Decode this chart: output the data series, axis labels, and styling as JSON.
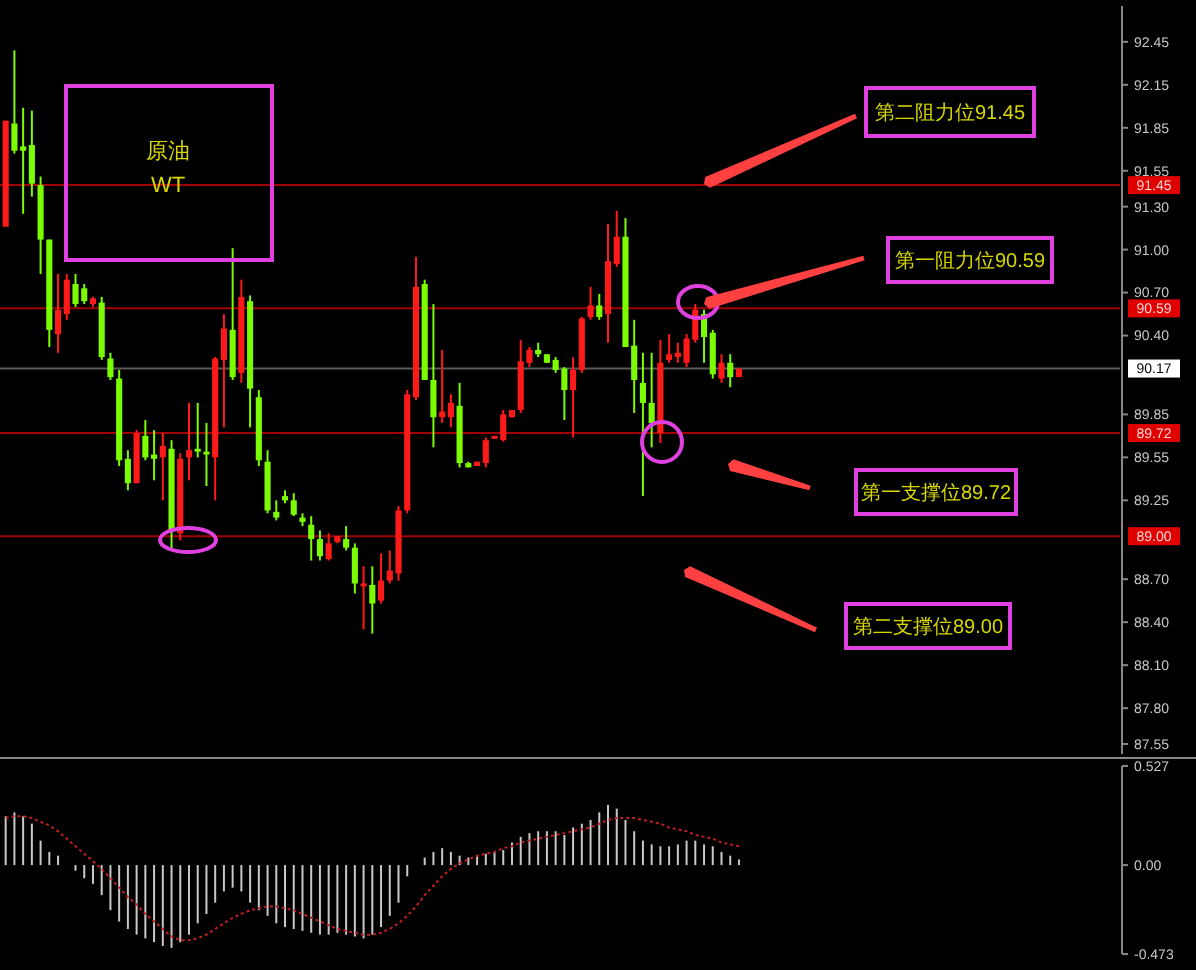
{
  "chart_data": [
    {
      "type": "candlestick",
      "title": "原油",
      "subtitle": "WT",
      "categories": [
        null,
        null,
        null,
        null,
        null,
        null,
        null,
        null,
        null,
        null,
        null,
        null,
        null,
        null,
        null,
        null,
        null,
        null,
        null,
        null,
        null,
        null,
        null,
        null,
        null,
        null,
        null,
        null,
        null,
        null,
        null,
        null,
        null,
        null,
        null,
        null,
        null,
        null,
        null,
        null,
        null,
        null,
        null,
        null,
        null,
        null,
        null,
        null,
        null,
        null,
        null,
        null,
        null,
        null,
        null,
        null,
        null,
        null,
        null,
        null,
        null,
        null,
        null,
        null,
        null,
        null,
        null,
        null,
        null,
        null,
        null,
        null,
        null,
        null,
        null,
        null,
        null,
        null,
        null,
        null,
        null,
        null,
        null,
        null,
        null,
        null,
        null,
        null,
        null,
        null,
        null,
        null,
        null,
        null,
        null,
        null,
        null,
        null,
        null,
        null,
        null,
        null,
        null,
        null,
        null,
        null,
        null,
        null,
        null,
        null,
        null,
        null,
        null,
        null,
        null,
        null,
        null,
        null,
        null,
        null,
        null,
        null,
        null,
        null,
        null,
        null,
        null,
        null
      ],
      "ohlc": [
        [
          91.16,
          91.9,
          91.16,
          91.9
        ],
        [
          91.88,
          92.39,
          91.67,
          91.69
        ],
        [
          91.72,
          91.99,
          91.25,
          91.69
        ],
        [
          91.73,
          91.97,
          91.37,
          91.46
        ],
        [
          91.45,
          91.51,
          90.83,
          91.07
        ],
        [
          91.07,
          91.07,
          90.32,
          90.44
        ],
        [
          90.41,
          90.83,
          90.28,
          90.58
        ],
        [
          90.55,
          90.83,
          90.51,
          90.79
        ],
        [
          90.76,
          90.83,
          90.6,
          90.62
        ],
        [
          90.73,
          90.76,
          90.62,
          90.64
        ],
        [
          90.62,
          90.67,
          90.6,
          90.66
        ],
        [
          90.63,
          90.67,
          90.23,
          90.25
        ],
        [
          90.24,
          90.28,
          90.09,
          90.11
        ],
        [
          90.1,
          90.16,
          89.49,
          89.53
        ],
        [
          89.54,
          89.6,
          89.32,
          89.37
        ],
        [
          89.37,
          89.74,
          89.37,
          89.72
        ],
        [
          89.7,
          89.81,
          89.53,
          89.55
        ],
        [
          89.57,
          89.74,
          89.39,
          89.54
        ],
        [
          89.55,
          89.72,
          89.25,
          89.63
        ],
        [
          89.61,
          89.67,
          88.9,
          89.04
        ],
        [
          89.02,
          89.58,
          88.97,
          89.54
        ],
        [
          89.55,
          89.93,
          89.39,
          89.6
        ],
        [
          89.61,
          89.93,
          89.55,
          89.59
        ],
        [
          89.59,
          89.79,
          89.35,
          89.57
        ],
        [
          89.55,
          90.25,
          89.25,
          90.24
        ],
        [
          90.23,
          90.55,
          89.76,
          90.45
        ],
        [
          90.44,
          91.01,
          90.09,
          90.11
        ],
        [
          90.14,
          90.79,
          90.07,
          90.67
        ],
        [
          90.64,
          90.68,
          89.76,
          90.03
        ],
        [
          89.97,
          90.02,
          89.49,
          89.53
        ],
        [
          89.52,
          89.6,
          89.16,
          89.18
        ],
        [
          89.17,
          89.25,
          89.11,
          89.13
        ],
        [
          89.28,
          89.32,
          89.23,
          89.25
        ],
        [
          89.25,
          89.3,
          89.14,
          89.15
        ],
        [
          89.13,
          89.16,
          89.07,
          89.1
        ],
        [
          89.08,
          89.14,
          88.83,
          88.98
        ],
        [
          88.98,
          89.04,
          88.83,
          88.86
        ],
        [
          88.84,
          89.02,
          88.83,
          88.95
        ],
        [
          88.96,
          89.0,
          88.95,
          89.0
        ],
        [
          88.98,
          89.07,
          88.9,
          88.92
        ],
        [
          88.92,
          88.95,
          88.6,
          88.67
        ],
        [
          88.65,
          88.79,
          88.35,
          88.67
        ],
        [
          88.66,
          88.79,
          88.32,
          88.53
        ],
        [
          88.55,
          88.88,
          88.53,
          88.69
        ],
        [
          88.69,
          88.9,
          88.67,
          88.76
        ],
        [
          88.74,
          89.21,
          88.69,
          89.18
        ],
        [
          89.18,
          90.02,
          89.16,
          89.99
        ],
        [
          89.97,
          90.95,
          89.95,
          90.74
        ],
        [
          90.76,
          90.79,
          90.09,
          90.09
        ],
        [
          90.09,
          90.62,
          89.62,
          89.83
        ],
        [
          89.83,
          90.3,
          89.79,
          89.87
        ],
        [
          89.83,
          89.99,
          89.76,
          89.93
        ],
        [
          89.91,
          90.07,
          89.48,
          89.51
        ],
        [
          89.51,
          89.52,
          89.48,
          89.48
        ],
        [
          89.49,
          89.52,
          89.49,
          89.52
        ],
        [
          89.51,
          89.69,
          89.48,
          89.67
        ],
        [
          89.68,
          89.7,
          89.68,
          89.7
        ],
        [
          89.67,
          89.88,
          89.66,
          89.85
        ],
        [
          89.83,
          89.88,
          89.83,
          89.88
        ],
        [
          89.88,
          90.37,
          89.86,
          90.22
        ],
        [
          90.21,
          90.32,
          90.18,
          90.3
        ],
        [
          90.3,
          90.35,
          90.25,
          90.27
        ],
        [
          90.27,
          90.27,
          90.21,
          90.21
        ],
        [
          90.23,
          90.25,
          90.14,
          90.16
        ],
        [
          90.17,
          90.18,
          89.81,
          90.02
        ],
        [
          90.02,
          90.25,
          89.69,
          90.16
        ],
        [
          90.16,
          90.53,
          90.14,
          90.52
        ],
        [
          90.53,
          90.74,
          90.51,
          90.61
        ],
        [
          90.61,
          90.69,
          90.51,
          90.53
        ],
        [
          90.55,
          91.18,
          90.35,
          90.92
        ],
        [
          90.9,
          91.27,
          90.88,
          91.09
        ],
        [
          91.09,
          91.22,
          90.32,
          90.32
        ],
        [
          90.33,
          90.51,
          89.86,
          90.09
        ],
        [
          90.07,
          90.28,
          89.28,
          89.93
        ],
        [
          89.93,
          90.28,
          89.62,
          89.79
        ],
        [
          89.72,
          90.37,
          89.65,
          90.21
        ],
        [
          90.23,
          90.41,
          90.21,
          90.27
        ],
        [
          90.25,
          90.35,
          90.21,
          90.28
        ],
        [
          90.21,
          90.41,
          90.18,
          90.38
        ],
        [
          90.37,
          90.62,
          90.35,
          90.58
        ],
        [
          90.55,
          90.58,
          90.21,
          90.39
        ],
        [
          90.42,
          90.44,
          90.1,
          90.13
        ],
        [
          90.1,
          90.27,
          90.07,
          90.21
        ],
        [
          90.21,
          90.27,
          90.04,
          90.11
        ],
        [
          90.11,
          90.17,
          90.11,
          90.17
        ],
        null,
        null,
        null,
        null,
        null,
        null,
        null,
        null,
        null,
        null,
        null,
        null,
        null,
        null,
        null,
        null,
        null,
        null,
        null,
        null,
        null,
        null,
        null,
        null,
        null,
        null,
        null,
        null,
        null,
        null,
        null,
        null,
        null,
        null,
        null,
        null,
        null,
        null,
        null,
        null,
        null,
        null,
        null
      ],
      "colors": [
        "#ff1a1a",
        "#7cfc00",
        "#7cfc00",
        "#7cfc00",
        "#7cfc00",
        "#7cfc00",
        "#ff1a1a",
        "#ff1a1a",
        "#7cfc00",
        "#7cfc00",
        "#ff1a1a",
        "#7cfc00",
        "#7cfc00",
        "#7cfc00",
        "#7cfc00",
        "#ff1a1a",
        "#7cfc00",
        "#7cfc00",
        "#ff1a1a",
        "#7cfc00",
        "#ff1a1a",
        "#ff1a1a",
        "#7cfc00",
        "#7cfc00",
        "#ff1a1a",
        "#ff1a1a",
        "#7cfc00",
        "#ff1a1a",
        "#7cfc00",
        "#7cfc00",
        "#7cfc00",
        "#7cfc00",
        "#7cfc00",
        "#7cfc00",
        "#7cfc00",
        "#7cfc00",
        "#7cfc00",
        "#ff1a1a",
        "#ff1a1a",
        "#7cfc00",
        "#7cfc00",
        "#ff1a1a",
        "#7cfc00",
        "#ff1a1a",
        "#ff1a1a",
        "#ff1a1a",
        "#ff1a1a",
        "#ff1a1a",
        "#7cfc00",
        "#7cfc00",
        "#ff1a1a",
        "#ff1a1a",
        "#7cfc00",
        "#7cfc00",
        "#ff1a1a",
        "#ff1a1a",
        "#ff1a1a",
        "#ff1a1a",
        "#ff1a1a",
        "#ff1a1a",
        "#ff1a1a",
        "#7cfc00",
        "#7cfc00",
        "#7cfc00",
        "#7cfc00",
        "#ff1a1a",
        "#ff1a1a",
        "#ff1a1a",
        "#7cfc00",
        "#ff1a1a",
        "#ff1a1a",
        "#7cfc00",
        "#7cfc00",
        "#7cfc00",
        "#7cfc00",
        "#ff1a1a",
        "#ff1a1a",
        "#ff1a1a",
        "#ff1a1a",
        "#ff1a1a",
        "#7cfc00",
        "#7cfc00",
        "#ff1a1a",
        "#7cfc00",
        "#ff1a1a",
        null,
        null,
        null,
        null,
        null,
        null,
        null,
        null,
        null,
        null,
        null,
        null,
        null,
        null,
        null,
        null,
        null,
        null,
        null,
        null,
        null,
        null,
        null,
        null,
        null,
        null,
        null,
        null,
        null,
        null,
        null,
        null,
        null,
        null,
        null,
        null,
        null,
        null,
        null,
        null,
        null,
        null,
        null
      ],
      "ylim": [
        87.48,
        92.7
      ],
      "yticks": [
        92.45,
        92.15,
        91.85,
        91.55,
        {
          "value": 91.3,
          "label": "91.30"
        },
        {
          "value": 91,
          "label": "91.00"
        },
        {
          "value": 90.7,
          "label": "90.70"
        },
        {
          "value": 90.4,
          "label": "90.40"
        },
        89.85,
        89.55,
        89.25,
        {
          "value": 88.7,
          "label": "88.70"
        },
        {
          "value": 88.4,
          "label": "88.40"
        },
        {
          "value": 88.1,
          "label": "88.10"
        },
        {
          "value": 87.8,
          "label": "87.80"
        },
        87.55
      ],
      "ref_lines": [
        {
          "axis": "y",
          "value": 91.45,
          "label": "91.45",
          "color": "#a00000"
        },
        {
          "axis": "y",
          "value": 90.59,
          "label": "90.59",
          "color": "#a00000"
        },
        {
          "axis": "y",
          "value": 90.17,
          "label": "90.17",
          "color": "#5a5a5a"
        },
        {
          "axis": "y",
          "value": 89.72,
          "label": "89.72",
          "color": "#a00000"
        },
        {
          "axis": "y",
          "value": 89.0,
          "label": "89.00",
          "color": "#a00000"
        }
      ],
      "annotations": [
        "第二阻力位91.45",
        "第一阻力位90.59",
        "第一支撑位89.72",
        "第二支撑位89.00"
      ]
    },
    {
      "type": "bar",
      "categories": [
        null,
        null,
        null,
        null,
        null,
        null,
        null,
        null,
        null,
        null,
        null,
        null,
        null,
        null,
        null,
        null,
        null,
        null,
        null,
        null,
        null,
        null,
        null,
        null,
        null,
        null,
        null,
        null,
        null,
        null,
        null,
        null,
        null,
        null,
        null,
        null,
        null,
        null,
        null,
        null,
        null,
        null,
        null,
        null,
        null,
        null,
        null,
        null,
        null,
        null,
        null,
        null,
        null,
        null,
        null,
        null,
        null,
        null,
        null,
        null,
        null,
        null,
        null,
        null,
        null,
        null,
        null,
        null,
        null,
        null,
        null,
        null,
        null,
        null,
        null,
        null,
        null,
        null,
        null,
        null,
        null,
        null,
        null,
        null,
        null,
        null,
        null,
        null,
        null,
        null,
        null,
        null,
        null,
        null,
        null,
        null,
        null,
        null,
        null,
        null,
        null,
        null,
        null,
        null,
        null,
        null,
        null,
        null,
        null,
        null,
        null,
        null,
        null,
        null,
        null,
        null,
        null,
        null,
        null,
        null,
        null,
        null,
        null,
        null,
        null,
        null,
        null,
        null
      ],
      "ylim": [
        -0.473,
        0.527
      ],
      "yticks": [
        0.527,
        {
          "value": 0,
          "label": "0.00"
        },
        -0.473
      ],
      "series": [
        {
          "type": "bar",
          "color": "#c8c8c8",
          "values": [
            0.26,
            0.28,
            0.26,
            0.22,
            0.13,
            0.07,
            0.05,
            null,
            -0.03,
            -0.07,
            -0.1,
            -0.16,
            -0.24,
            -0.3,
            -0.34,
            -0.37,
            -0.39,
            -0.41,
            -0.43,
            -0.44,
            -0.41,
            -0.37,
            -0.31,
            -0.26,
            -0.2,
            -0.14,
            -0.12,
            -0.14,
            -0.2,
            -0.24,
            -0.27,
            -0.31,
            -0.33,
            -0.34,
            -0.35,
            -0.36,
            -0.37,
            -0.37,
            -0.36,
            -0.37,
            -0.38,
            -0.39,
            -0.37,
            -0.33,
            -0.27,
            -0.2,
            -0.06,
            null,
            0.04,
            0.07,
            0.09,
            0.07,
            0.05,
            0.04,
            0.05,
            0.06,
            0.07,
            0.08,
            0.12,
            0.15,
            0.17,
            0.18,
            0.18,
            0.18,
            0.16,
            0.2,
            0.22,
            0.24,
            0.28,
            0.32,
            0.3,
            0.24,
            0.18,
            0.13,
            0.11,
            0.1,
            0.1,
            0.11,
            0.13,
            0.13,
            0.11,
            0.1,
            0.07,
            0.05,
            0.03,
            null,
            null,
            null,
            null,
            null,
            null,
            null,
            null,
            null,
            null,
            null,
            null,
            null,
            null,
            null,
            null,
            null,
            null,
            null,
            null,
            null,
            null,
            null,
            null,
            null,
            null,
            null,
            null,
            null,
            null,
            null,
            null,
            null,
            null,
            null,
            null,
            null,
            null,
            null,
            null,
            null,
            null,
            null
          ]
        },
        {
          "type": "line",
          "color": "#c02020",
          "line_style": "dotted",
          "values": [
            0.25,
            0.26,
            0.26,
            0.25,
            0.23,
            0.21,
            0.18,
            0.14,
            0.1,
            0.06,
            0.02,
            -0.02,
            -0.07,
            -0.12,
            -0.17,
            -0.21,
            -0.26,
            -0.3,
            -0.34,
            -0.38,
            -0.4,
            -0.4,
            -0.39,
            -0.37,
            -0.34,
            -0.31,
            -0.28,
            -0.26,
            -0.24,
            -0.23,
            -0.22,
            -0.22,
            -0.23,
            -0.24,
            -0.26,
            -0.28,
            -0.3,
            -0.32,
            -0.34,
            -0.35,
            -0.36,
            -0.37,
            -0.37,
            -0.36,
            -0.34,
            -0.31,
            -0.27,
            -0.22,
            -0.16,
            -0.11,
            -0.06,
            -0.02,
            0.01,
            0.03,
            0.05,
            0.06,
            0.07,
            0.09,
            0.1,
            0.12,
            0.13,
            0.14,
            0.15,
            0.16,
            0.17,
            0.18,
            0.19,
            0.2,
            0.22,
            0.24,
            0.25,
            0.25,
            0.25,
            0.24,
            0.23,
            0.22,
            0.2,
            0.19,
            0.18,
            0.16,
            0.15,
            0.14,
            0.12,
            0.11,
            0.1,
            null,
            null,
            null,
            null,
            null,
            null,
            null,
            null,
            null,
            null,
            null,
            null,
            null,
            null,
            null,
            null,
            null,
            null,
            null,
            null,
            null,
            null,
            null,
            null,
            null,
            null,
            null,
            null,
            null,
            null,
            null,
            null,
            null,
            null,
            null,
            null,
            null,
            null,
            null,
            null,
            null,
            null,
            null
          ]
        }
      ]
    }
  ]
}
